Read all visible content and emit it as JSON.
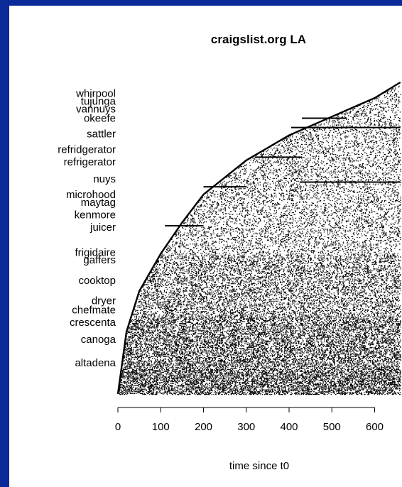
{
  "colors": {
    "frame": "#0a2a9a",
    "plot_background": "#ffffff",
    "ink": "#000000"
  },
  "chart_data": {
    "type": "scatter",
    "title": "craigslist.org LA",
    "xlabel": "time since t0",
    "ylabel": "",
    "x_ticks": [
      0,
      100,
      200,
      300,
      400,
      500,
      600
    ],
    "xlim": [
      0,
      660
    ],
    "grid": false,
    "legend": "none",
    "description_of_marks": "each row is a search term; each dot is a post mentioning that term; rows start at the term's first appearance",
    "boundary_curve": {
      "x": [
        0,
        20,
        50,
        100,
        150,
        200,
        300,
        400,
        500,
        600,
        660
      ],
      "row_from_bottom_fraction": [
        0.0,
        0.2,
        0.33,
        0.45,
        0.55,
        0.64,
        0.75,
        0.83,
        0.89,
        0.95,
        1.0
      ]
    },
    "labeled_terms": [
      {
        "label": "whirpool",
        "row": 0.965
      },
      {
        "label": "tujunga",
        "row": 0.94
      },
      {
        "label": "vannuys",
        "row": 0.915
      },
      {
        "label": "okeefe",
        "row": 0.885
      },
      {
        "label": "sattler",
        "row": 0.835
      },
      {
        "label": "refridgerator",
        "row": 0.785
      },
      {
        "label": "refrigerator",
        "row": 0.745
      },
      {
        "label": "nuys",
        "row": 0.69
      },
      {
        "label": "microhood",
        "row": 0.64
      },
      {
        "label": "maytag",
        "row": 0.615
      },
      {
        "label": "kenmore",
        "row": 0.575
      },
      {
        "label": "juicer",
        "row": 0.535
      },
      {
        "label": "frigidaire",
        "row": 0.455
      },
      {
        "label": "gaffers",
        "row": 0.43
      },
      {
        "label": "cooktop",
        "row": 0.365
      },
      {
        "label": "dryer",
        "row": 0.3
      },
      {
        "label": "chefmate",
        "row": 0.27
      },
      {
        "label": "crescenta",
        "row": 0.23
      },
      {
        "label": "canoga",
        "row": 0.175
      },
      {
        "label": "altadena",
        "row": 0.1
      }
    ],
    "highlighted_streaks": [
      {
        "row": 0.885,
        "x_start": 430,
        "x_end": 535
      },
      {
        "row": 0.855,
        "x_start": 405,
        "x_end": 660
      },
      {
        "row": 0.76,
        "x_start": 320,
        "x_end": 430
      },
      {
        "row": 0.68,
        "x_start": 425,
        "x_end": 660
      },
      {
        "row": 0.665,
        "x_start": 200,
        "x_end": 300
      },
      {
        "row": 0.54,
        "x_start": 110,
        "x_end": 200
      }
    ]
  }
}
